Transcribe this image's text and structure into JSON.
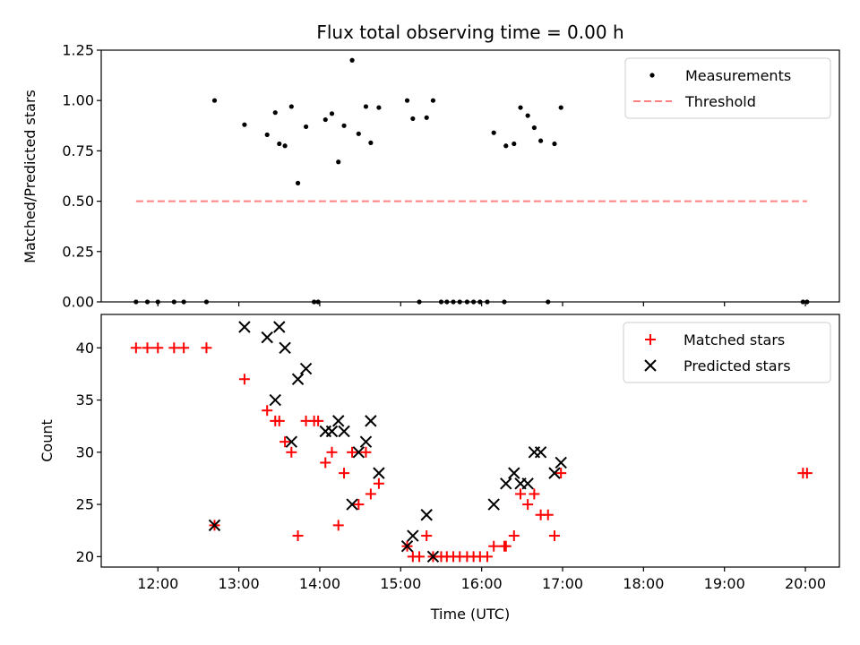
{
  "chart_data": [
    {
      "type": "scatter",
      "title": "Flux total observing time = 0.00 h",
      "xlabel": "",
      "ylabel": "Matched/Predicted stars",
      "xlim": [
        11.3,
        20.42
      ],
      "ylim": [
        0.0,
        1.25
      ],
      "yticks": [
        0.0,
        0.25,
        0.5,
        0.75,
        1.0,
        1.25
      ],
      "ytick_labels": [
        "0.00",
        "0.25",
        "0.50",
        "0.75",
        "1.00",
        "1.25"
      ],
      "legend": {
        "location": "top-right",
        "entries": [
          "Measurements",
          "Threshold"
        ]
      },
      "grid": false,
      "series": [
        {
          "name": "Measurements",
          "marker": "dot",
          "color": "#000000",
          "points": [
            [
              11.73,
              0.0
            ],
            [
              11.87,
              0.0
            ],
            [
              12.0,
              0.0
            ],
            [
              12.2,
              0.0
            ],
            [
              12.32,
              0.0
            ],
            [
              12.6,
              0.0
            ],
            [
              12.7,
              1.0
            ],
            [
              13.07,
              0.88
            ],
            [
              13.35,
              0.83
            ],
            [
              13.45,
              0.94
            ],
            [
              13.5,
              0.785
            ],
            [
              13.57,
              0.775
            ],
            [
              13.65,
              0.97
            ],
            [
              13.73,
              0.59
            ],
            [
              13.83,
              0.87
            ],
            [
              13.93,
              0.0
            ],
            [
              13.98,
              0.0
            ],
            [
              14.07,
              0.905
            ],
            [
              14.15,
              0.935
            ],
            [
              14.23,
              0.695
            ],
            [
              14.3,
              0.875
            ],
            [
              14.4,
              1.2
            ],
            [
              14.48,
              0.835
            ],
            [
              14.57,
              0.97
            ],
            [
              14.63,
              0.79
            ],
            [
              14.73,
              0.965
            ],
            [
              15.08,
              1.0
            ],
            [
              15.15,
              0.91
            ],
            [
              15.23,
              0.0
            ],
            [
              15.32,
              0.915
            ],
            [
              15.4,
              1.0
            ],
            [
              15.5,
              0.0
            ],
            [
              15.57,
              0.0
            ],
            [
              15.65,
              0.0
            ],
            [
              15.73,
              0.0
            ],
            [
              15.82,
              0.0
            ],
            [
              15.9,
              0.0
            ],
            [
              15.98,
              0.0
            ],
            [
              16.07,
              0.0
            ],
            [
              16.15,
              0.84
            ],
            [
              16.28,
              0.0
            ],
            [
              16.3,
              0.775
            ],
            [
              16.4,
              0.785
            ],
            [
              16.48,
              0.965
            ],
            [
              16.57,
              0.925
            ],
            [
              16.65,
              0.865
            ],
            [
              16.73,
              0.8
            ],
            [
              16.82,
              0.0
            ],
            [
              16.9,
              0.785
            ],
            [
              16.98,
              0.965
            ],
            [
              19.97,
              0.0
            ],
            [
              20.02,
              0.0
            ]
          ]
        },
        {
          "name": "Threshold",
          "style": "dashed",
          "color": "#ff8080",
          "points": [
            [
              11.73,
              0.5
            ],
            [
              20.02,
              0.5
            ]
          ]
        }
      ]
    },
    {
      "type": "scatter",
      "title": "",
      "xlabel": "Time (UTC)",
      "ylabel": "Count",
      "xlim": [
        11.3,
        20.42
      ],
      "ylim": [
        19.0,
        43.2
      ],
      "xticks": [
        12,
        13,
        14,
        15,
        16,
        17,
        18,
        19,
        20
      ],
      "xtick_labels": [
        "12:00",
        "13:00",
        "14:00",
        "15:00",
        "16:00",
        "17:00",
        "18:00",
        "19:00",
        "20:00"
      ],
      "yticks": [
        20,
        25,
        30,
        35,
        40
      ],
      "ytick_labels": [
        "20",
        "25",
        "30",
        "35",
        "40"
      ],
      "legend": {
        "location": "top-right",
        "entries": [
          "Matched stars",
          "Predicted stars"
        ]
      },
      "grid": false,
      "series": [
        {
          "name": "Matched stars",
          "marker": "plus",
          "color": "#ff0000",
          "points": [
            [
              11.73,
              40
            ],
            [
              11.87,
              40
            ],
            [
              12.0,
              40
            ],
            [
              12.2,
              40
            ],
            [
              12.32,
              40
            ],
            [
              12.6,
              40
            ],
            [
              12.7,
              23
            ],
            [
              13.07,
              37
            ],
            [
              13.35,
              34
            ],
            [
              13.45,
              33
            ],
            [
              13.5,
              33
            ],
            [
              13.57,
              31
            ],
            [
              13.65,
              30
            ],
            [
              13.73,
              22
            ],
            [
              13.83,
              33
            ],
            [
              13.93,
              33
            ],
            [
              13.98,
              33
            ],
            [
              14.07,
              29
            ],
            [
              14.15,
              30
            ],
            [
              14.23,
              23
            ],
            [
              14.3,
              28
            ],
            [
              14.4,
              30
            ],
            [
              14.48,
              25
            ],
            [
              14.57,
              30
            ],
            [
              14.63,
              26
            ],
            [
              14.73,
              27
            ],
            [
              15.08,
              21
            ],
            [
              15.15,
              20
            ],
            [
              15.23,
              20
            ],
            [
              15.32,
              22
            ],
            [
              15.4,
              20
            ],
            [
              15.5,
              20
            ],
            [
              15.57,
              20
            ],
            [
              15.65,
              20
            ],
            [
              15.73,
              20
            ],
            [
              15.82,
              20
            ],
            [
              15.9,
              20
            ],
            [
              15.98,
              20
            ],
            [
              16.07,
              20
            ],
            [
              16.15,
              21
            ],
            [
              16.28,
              21
            ],
            [
              16.3,
              21
            ],
            [
              16.4,
              22
            ],
            [
              16.48,
              26
            ],
            [
              16.57,
              25
            ],
            [
              16.65,
              26
            ],
            [
              16.73,
              24
            ],
            [
              16.82,
              24
            ],
            [
              16.9,
              22
            ],
            [
              16.98,
              28
            ],
            [
              19.97,
              28
            ],
            [
              20.02,
              28
            ]
          ]
        },
        {
          "name": "Predicted stars",
          "marker": "x",
          "color": "#000000",
          "points": [
            [
              12.7,
              23
            ],
            [
              13.07,
              42
            ],
            [
              13.35,
              41
            ],
            [
              13.45,
              35
            ],
            [
              13.5,
              42
            ],
            [
              13.57,
              40
            ],
            [
              13.65,
              31
            ],
            [
              13.73,
              37
            ],
            [
              13.83,
              38
            ],
            [
              14.07,
              32
            ],
            [
              14.15,
              32
            ],
            [
              14.23,
              33
            ],
            [
              14.3,
              32
            ],
            [
              14.4,
              25
            ],
            [
              14.48,
              30
            ],
            [
              14.57,
              31
            ],
            [
              14.63,
              33
            ],
            [
              14.73,
              28
            ],
            [
              15.08,
              21
            ],
            [
              15.15,
              22
            ],
            [
              15.32,
              24
            ],
            [
              15.4,
              20
            ],
            [
              16.15,
              25
            ],
            [
              16.3,
              27
            ],
            [
              16.4,
              28
            ],
            [
              16.48,
              27
            ],
            [
              16.57,
              27
            ],
            [
              16.65,
              30
            ],
            [
              16.73,
              30
            ],
            [
              16.9,
              28
            ],
            [
              16.98,
              29
            ]
          ]
        }
      ]
    }
  ]
}
